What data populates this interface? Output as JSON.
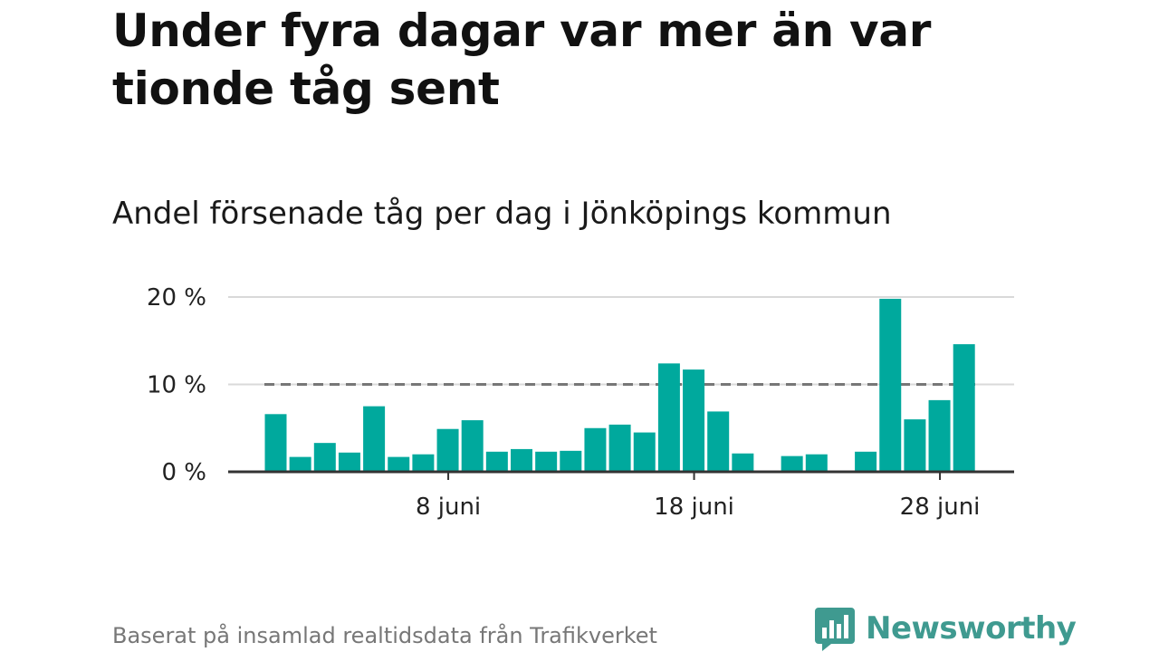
{
  "title": "Under fyra dagar var mer än var tionde tåg sent",
  "subtitle": "Andel försenade tåg per dag i Jönköpings kommun",
  "source": "Baserat på insamlad realtidsdata från Trafikverket",
  "brand": {
    "name": "Newsworthy",
    "icon": "bar-chart-speech-bubble-icon",
    "color": "#3f9a90"
  },
  "colors": {
    "bar": "#00a99d",
    "reference_line": "#777777",
    "grid": "#d9d9d9",
    "axis": "#333333"
  },
  "chart_data": {
    "type": "bar",
    "x": [
      "1 juni",
      "2 juni",
      "3 juni",
      "4 juni",
      "5 juni",
      "6 juni",
      "7 juni",
      "8 juni",
      "9 juni",
      "10 juni",
      "11 juni",
      "12 juni",
      "13 juni",
      "14 juni",
      "15 juni",
      "16 juni",
      "17 juni",
      "18 juni",
      "19 juni",
      "20 juni",
      "21 juni",
      "22 juni",
      "23 juni",
      "24 juni",
      "25 juni",
      "26 juni",
      "27 juni",
      "28 juni",
      "29 juni"
    ],
    "values": [
      6.6,
      1.7,
      3.3,
      2.2,
      7.5,
      1.7,
      2.0,
      4.9,
      5.9,
      2.3,
      2.6,
      2.3,
      2.4,
      5.0,
      5.4,
      4.5,
      12.4,
      11.7,
      6.9,
      2.1,
      0,
      1.8,
      2.0,
      0,
      2.3,
      19.8,
      6.0,
      8.2,
      14.6
    ],
    "reference_value": 10,
    "y_ticks": [
      {
        "value": 0,
        "label": "0 %"
      },
      {
        "value": 10,
        "label": "10 %"
      },
      {
        "value": 20,
        "label": "20 %"
      }
    ],
    "x_ticks": [
      {
        "x": "8 juni",
        "label": "8 juni"
      },
      {
        "x": "18 juni",
        "label": "18 juni"
      },
      {
        "x": "28 juni",
        "label": "28 juni"
      }
    ],
    "ylim": [
      0,
      20
    ],
    "grid": true,
    "legend": "none"
  }
}
